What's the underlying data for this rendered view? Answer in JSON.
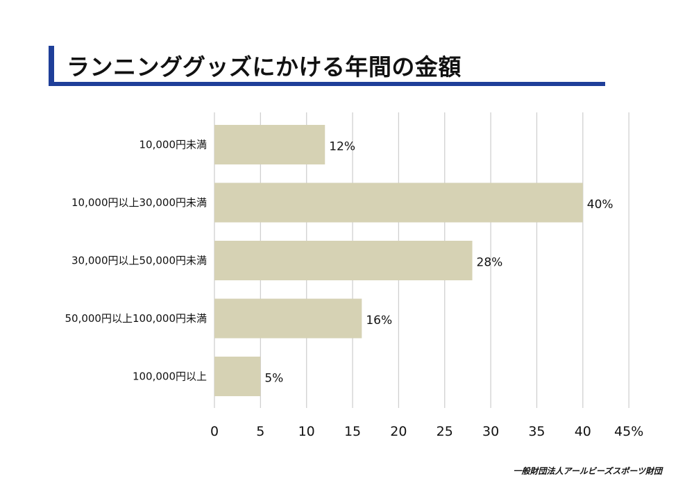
{
  "title": "ランニンググッズにかける年間の金額",
  "source": "一般財団法人アールビーズスポーツ財団",
  "colors": {
    "accent": "#1f3f99",
    "bar": "#d6d2b4",
    "grid": "#d0d0d0"
  },
  "chart_data": {
    "type": "bar",
    "orientation": "horizontal",
    "categories": [
      "10,000円未満",
      "10,000円以上30,000円未満",
      "30,000円以上50,000円未満",
      "50,000円以上100,000円未満",
      "100,000円以上"
    ],
    "values": [
      12,
      40,
      28,
      16,
      5
    ],
    "value_labels": [
      "12%",
      "40%",
      "28%",
      "16%",
      "5%"
    ],
    "x_ticks": [
      "0",
      "5",
      "10",
      "15",
      "20",
      "25",
      "30",
      "35",
      "40",
      "45%"
    ],
    "xlim": [
      0,
      45
    ],
    "grid": true
  }
}
